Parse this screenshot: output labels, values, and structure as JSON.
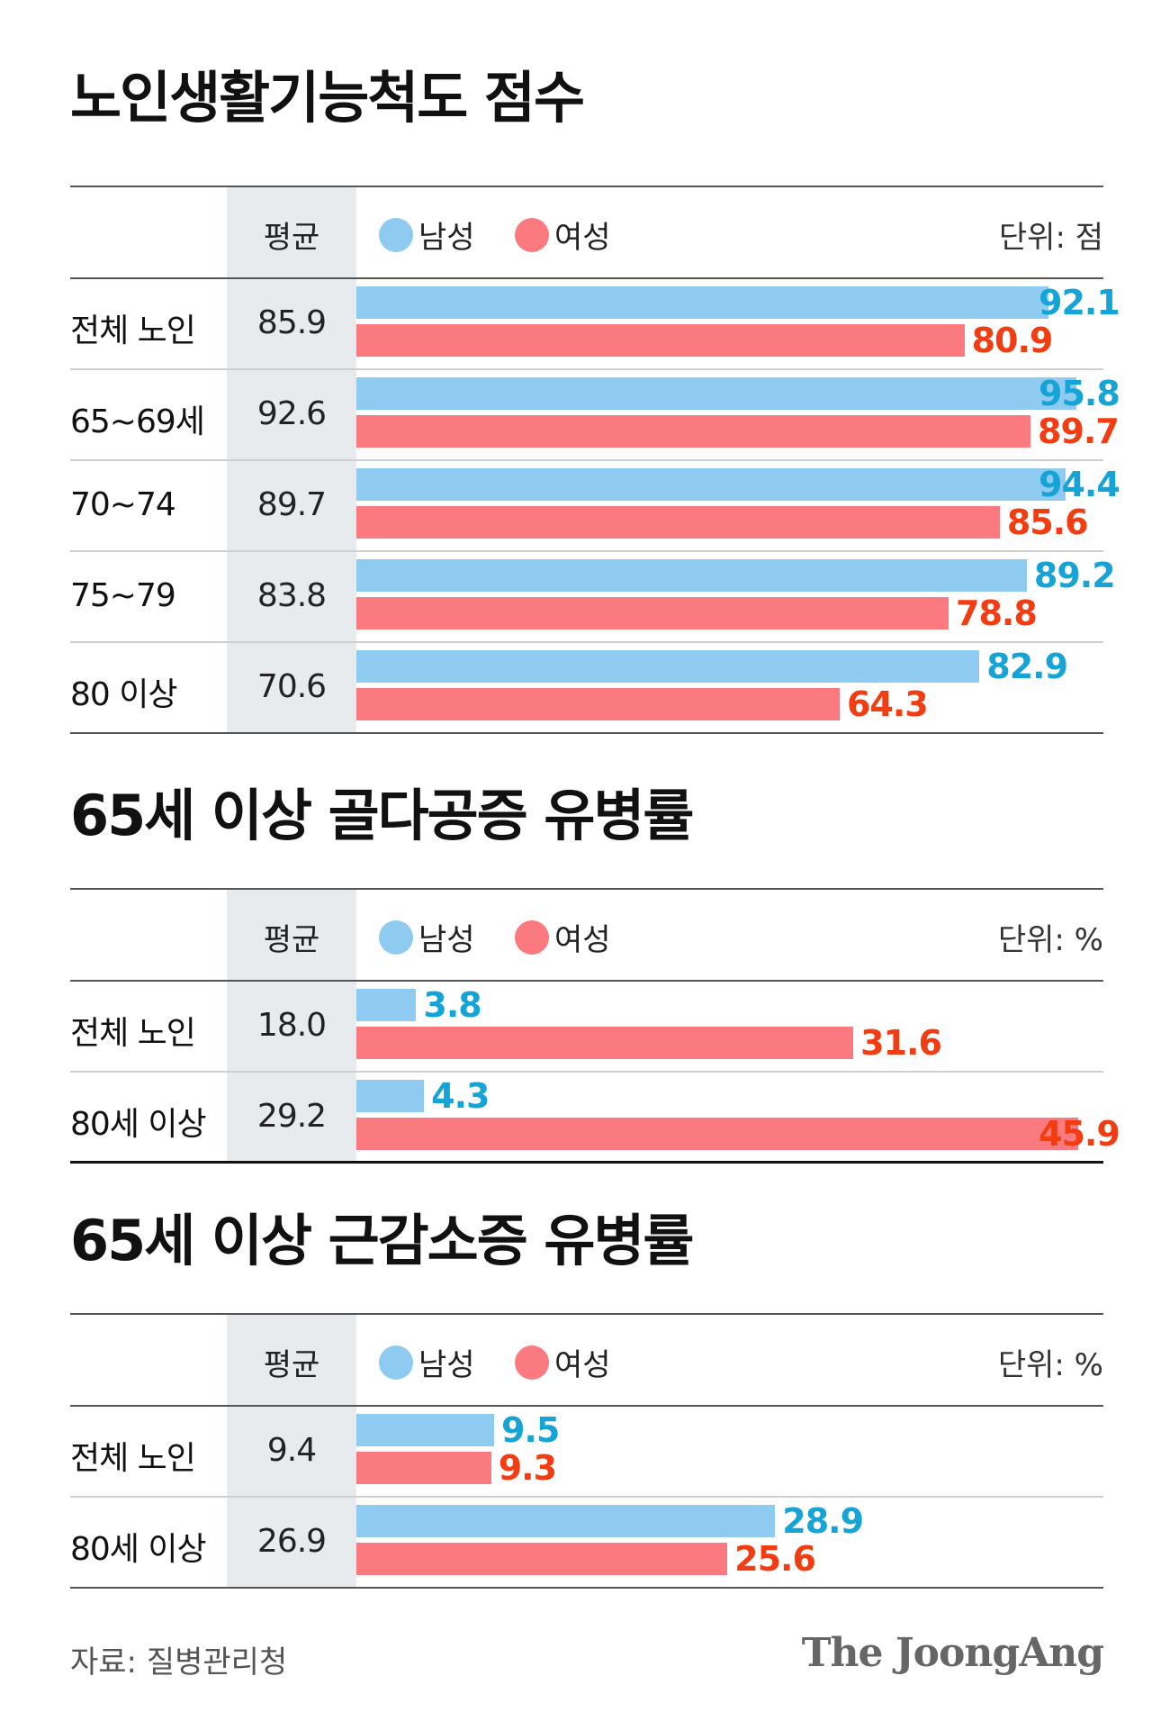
{
  "colors": {
    "male": "#8fcbf0",
    "female": "#fb7a7f",
    "male_text": "#16a3d6",
    "female_text": "#f23c12",
    "avg_bg": "#e8ebee"
  },
  "legend": {
    "avg": "평균",
    "male": "남성",
    "female": "여성"
  },
  "footer": {
    "source": "자료: 질병관리청",
    "logo": "The JoongAng"
  },
  "chart_data": [
    {
      "type": "bar",
      "title": "노인생활기능척도 점수",
      "unit": "단위: 점",
      "categories": [
        "전체 노인",
        "65~69세",
        "70~74",
        "75~79",
        "80 이상"
      ],
      "averages": [
        "85.9",
        "92.6",
        "89.7",
        "83.8",
        "70.6"
      ],
      "series": [
        {
          "name": "남성",
          "values": [
            92.1,
            95.8,
            94.4,
            89.2,
            82.9
          ],
          "labels": [
            "92.1",
            "95.8",
            "94.4",
            "89.2",
            "82.9"
          ]
        },
        {
          "name": "여성",
          "values": [
            80.9,
            89.7,
            85.6,
            78.8,
            64.3
          ],
          "labels": [
            "80.9",
            "89.7",
            "85.6",
            "78.8",
            "64.3"
          ]
        }
      ],
      "xlim": [
        0,
        100
      ]
    },
    {
      "type": "bar",
      "title": "65세 이상 골다공증 유병률",
      "unit": "단위: %",
      "categories": [
        "전체 노인",
        "80세 이상"
      ],
      "averages": [
        "18.0",
        "29.2"
      ],
      "series": [
        {
          "name": "남성",
          "values": [
            3.8,
            4.3
          ],
          "labels": [
            "3.8",
            "4.3"
          ]
        },
        {
          "name": "여성",
          "values": [
            31.6,
            45.9
          ],
          "labels": [
            "31.6",
            "45.9"
          ]
        }
      ],
      "xlim": [
        0,
        46
      ]
    },
    {
      "type": "bar",
      "title": "65세 이상 근감소증 유병률",
      "unit": "단위: %",
      "categories": [
        "전체 노인",
        "80세 이상"
      ],
      "averages": [
        "9.4",
        "26.9"
      ],
      "series": [
        {
          "name": "남성",
          "values": [
            9.5,
            28.9
          ],
          "labels": [
            "9.5",
            "28.9"
          ]
        },
        {
          "name": "여성",
          "values": [
            9.3,
            25.6
          ],
          "labels": [
            "9.3",
            "25.6"
          ]
        }
      ],
      "xlim": [
        0,
        40
      ]
    }
  ]
}
